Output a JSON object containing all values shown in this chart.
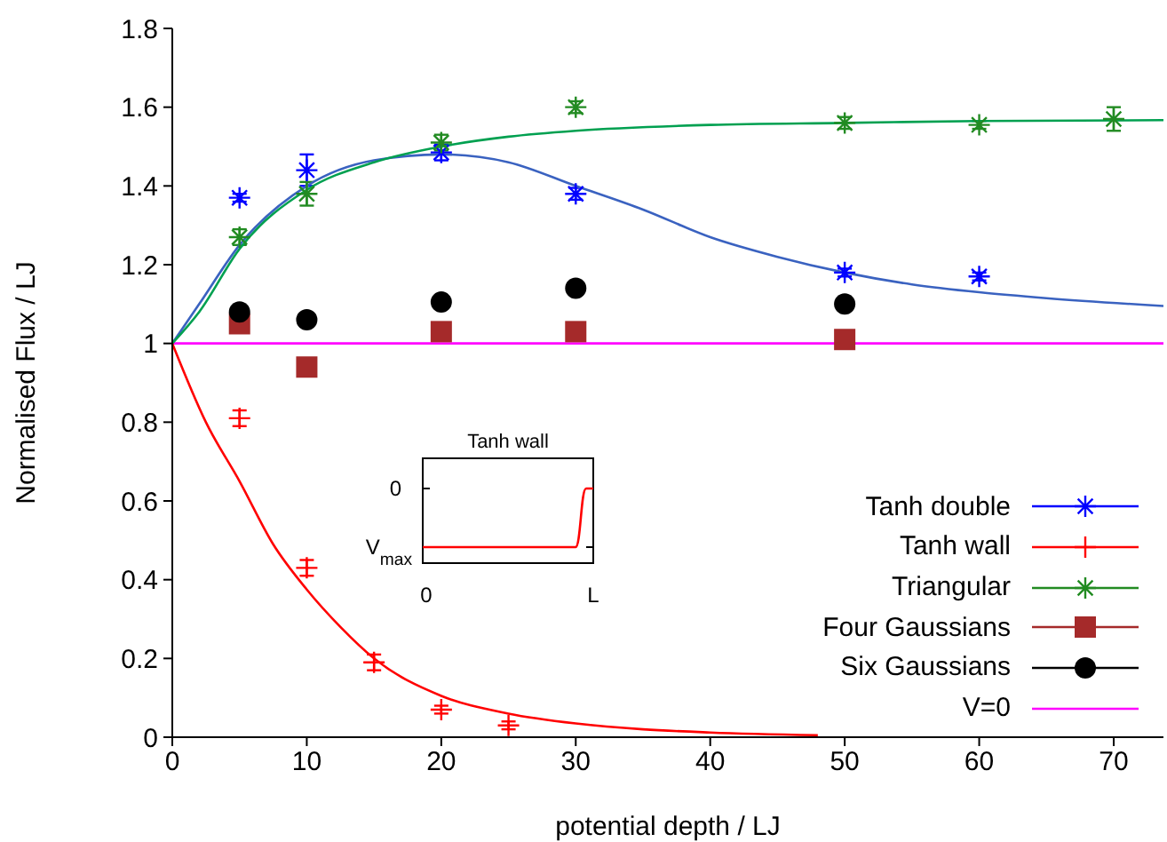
{
  "chart_data": {
    "type": "scatter",
    "xlabel": "potential depth / LJ",
    "ylabel": "Normalised Flux / LJ",
    "xlim": [
      0,
      73.7
    ],
    "xticks": [
      0,
      10,
      20,
      30,
      40,
      50,
      60,
      70
    ],
    "ylim": [
      0,
      1.8
    ],
    "yticks": [
      0,
      0.2,
      0.4,
      0.6,
      0.8,
      1,
      1.2,
      1.4,
      1.6,
      1.8
    ],
    "grid": false,
    "legend": "bottom right",
    "annotations": [
      "Tanh wall",
      "0",
      "V$_{max}$",
      "0",
      "L"
    ],
    "series": [
      {
        "name": "Tanh double",
        "color": "#0000ff",
        "x": [
          5,
          10,
          20,
          30,
          50,
          60
        ],
        "values": [
          1.37,
          1.44,
          1.485,
          1.38,
          1.18,
          1.17
        ],
        "errors": [
          0.01,
          0.04,
          0.02,
          0.015,
          0.01,
          0.01
        ]
      },
      {
        "name": "Tanh wall",
        "marker": "cross",
        "color": "#ff0000",
        "x": [
          5,
          10,
          15,
          20,
          25
        ],
        "values": [
          0.81,
          0.43,
          0.19,
          0.07,
          0.03
        ],
        "errors": [
          0.02,
          0.02,
          0.02,
          0.01,
          0.01
        ]
      },
      {
        "name": "Triangular",
        "color": "#228b22",
        "x": [
          5,
          10,
          20,
          30,
          50,
          60,
          70
        ],
        "values": [
          1.27,
          1.38,
          1.51,
          1.6,
          1.56,
          1.555,
          1.57
        ],
        "errors": [
          0.02,
          0.03,
          0.02,
          0.015,
          0.015,
          0.01,
          0.03
        ]
      },
      {
        "name": "Four Gaussians",
        "marker": "square",
        "color": "#a52a2a",
        "x": [
          5,
          10,
          20,
          30,
          50
        ],
        "values": [
          1.05,
          0.94,
          1.03,
          1.03,
          1.01
        ]
      },
      {
        "name": "Six Gaussians",
        "marker": "circle",
        "color": "#000000",
        "x": [
          5,
          10,
          20,
          30,
          50
        ],
        "values": [
          1.08,
          1.06,
          1.105,
          1.14,
          1.1
        ]
      },
      {
        "name": "V=0",
        "type": "line",
        "marker": "none",
        "color": "#ff00ff",
        "x": [
          0,
          73.7
        ],
        "values": [
          1,
          1
        ]
      },
      {
        "type": "line",
        "marker": "none",
        "color": "#3a62c0",
        "x": [
          0,
          2,
          5,
          10,
          15,
          20,
          25,
          30,
          35,
          40,
          45,
          50,
          55,
          60,
          65,
          73.7
        ],
        "values": [
          1.0,
          1.1,
          1.25,
          1.4,
          1.465,
          1.48,
          1.46,
          1.4,
          1.34,
          1.27,
          1.22,
          1.18,
          1.15,
          1.13,
          1.115,
          1.095
        ]
      },
      {
        "type": "line",
        "marker": "none",
        "color": "#00a050",
        "x": [
          0,
          2,
          5,
          10,
          15,
          20,
          25,
          30,
          40,
          50,
          60,
          73.7
        ],
        "values": [
          1.0,
          1.08,
          1.24,
          1.39,
          1.46,
          1.5,
          1.525,
          1.54,
          1.555,
          1.56,
          1.565,
          1.567
        ]
      },
      {
        "type": "line",
        "marker": "none",
        "color": "#ff0000",
        "x": [
          0,
          2.5,
          5,
          7.5,
          10,
          12.5,
          15,
          20,
          25,
          30,
          35,
          40,
          48
        ],
        "values": [
          1.0,
          0.8,
          0.65,
          0.49,
          0.375,
          0.28,
          0.2,
          0.105,
          0.06,
          0.035,
          0.02,
          0.012,
          0.005
        ]
      }
    ]
  }
}
